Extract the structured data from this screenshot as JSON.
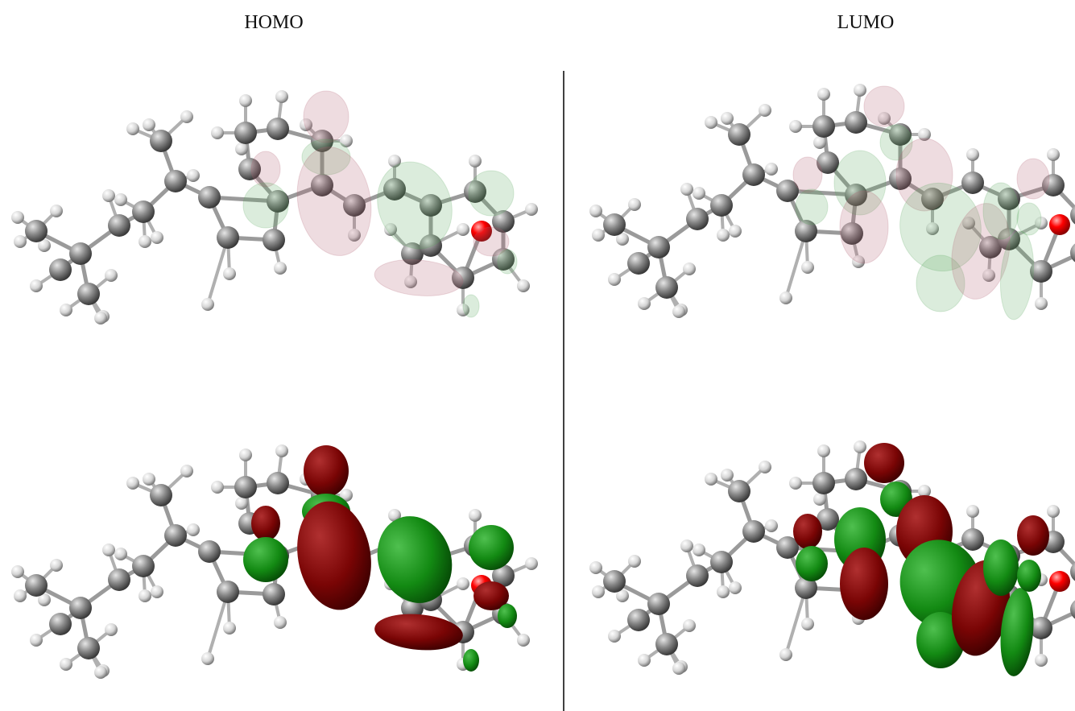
{
  "panels": [
    {
      "label": "HOMO"
    },
    {
      "label": "LUMO"
    }
  ]
}
